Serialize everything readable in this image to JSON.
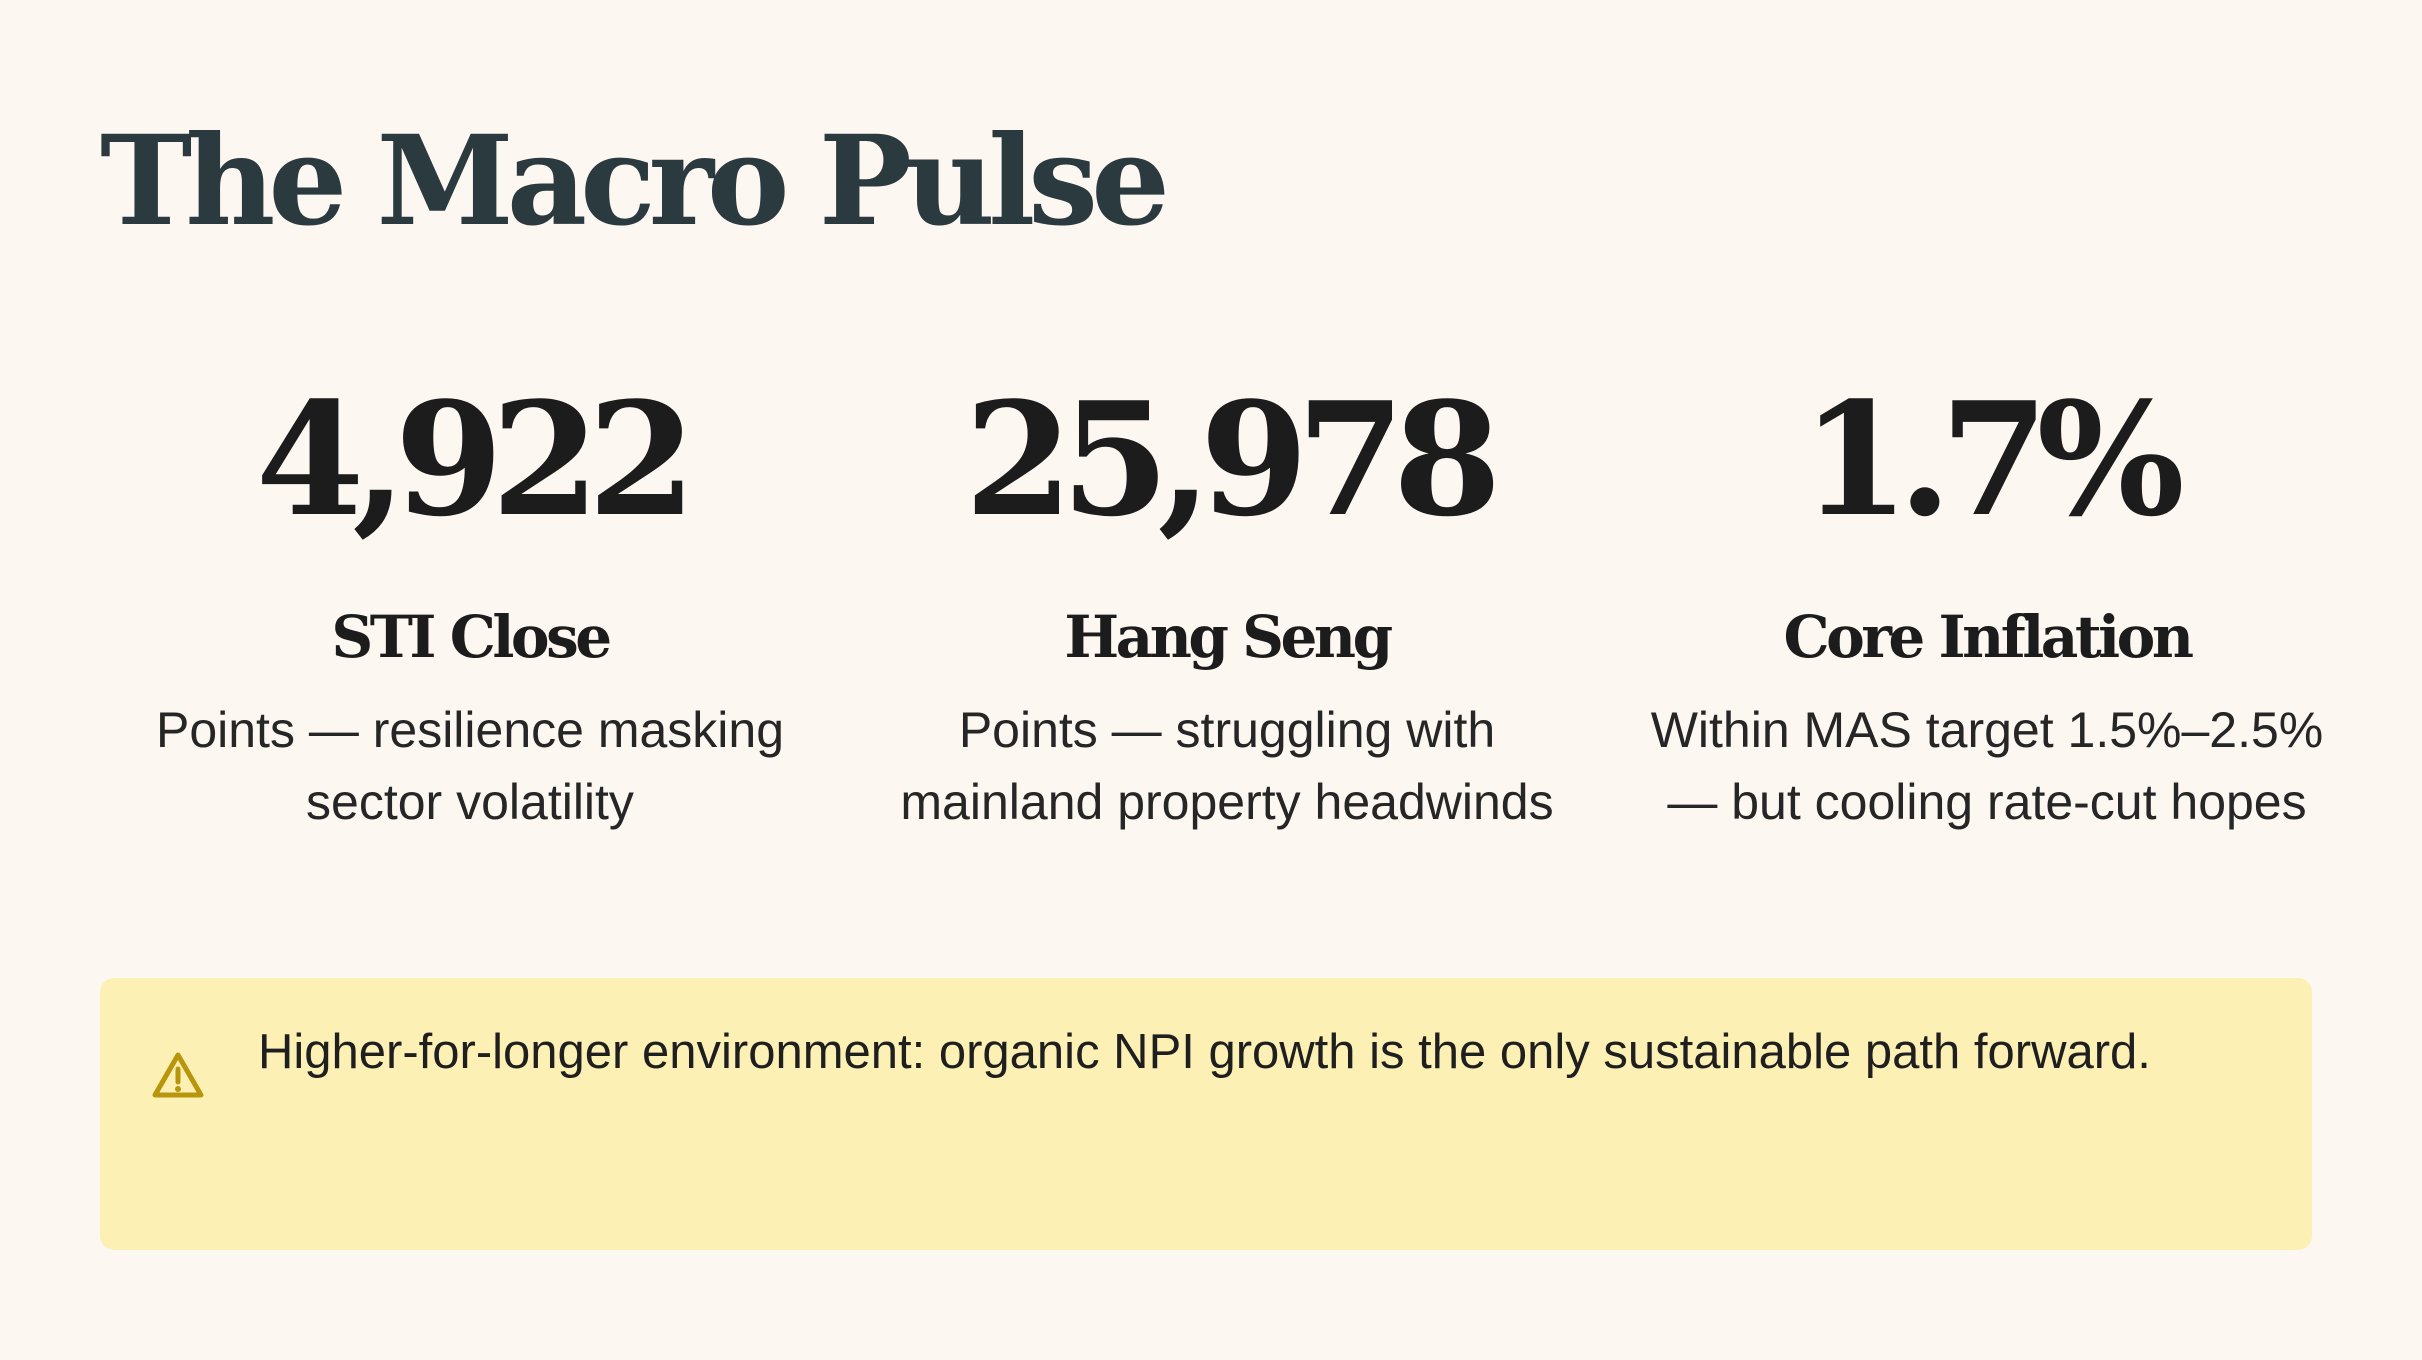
{
  "page": {
    "title": "The Macro Pulse"
  },
  "stats": [
    {
      "value": "4,922",
      "label": "STI Close",
      "description": "Points — resilience masking sector volatility"
    },
    {
      "value": "25,978",
      "label": "Hang Seng",
      "description": "Points — struggling with mainland property headwinds"
    },
    {
      "value": "1.7%",
      "label": "Core Inflation",
      "description": "Within MAS target 1.5%–2.5% — but cooling rate-cut hopes"
    }
  ],
  "callout": {
    "icon": "warning-icon",
    "text": "Higher-for-longer environment: organic NPI growth is the only sustainable path forward."
  },
  "colors": {
    "background": "#fdf7f1",
    "title": "#2b3a3f",
    "callout_background": "#fcf0b4",
    "warning_icon": "#b8960c"
  }
}
